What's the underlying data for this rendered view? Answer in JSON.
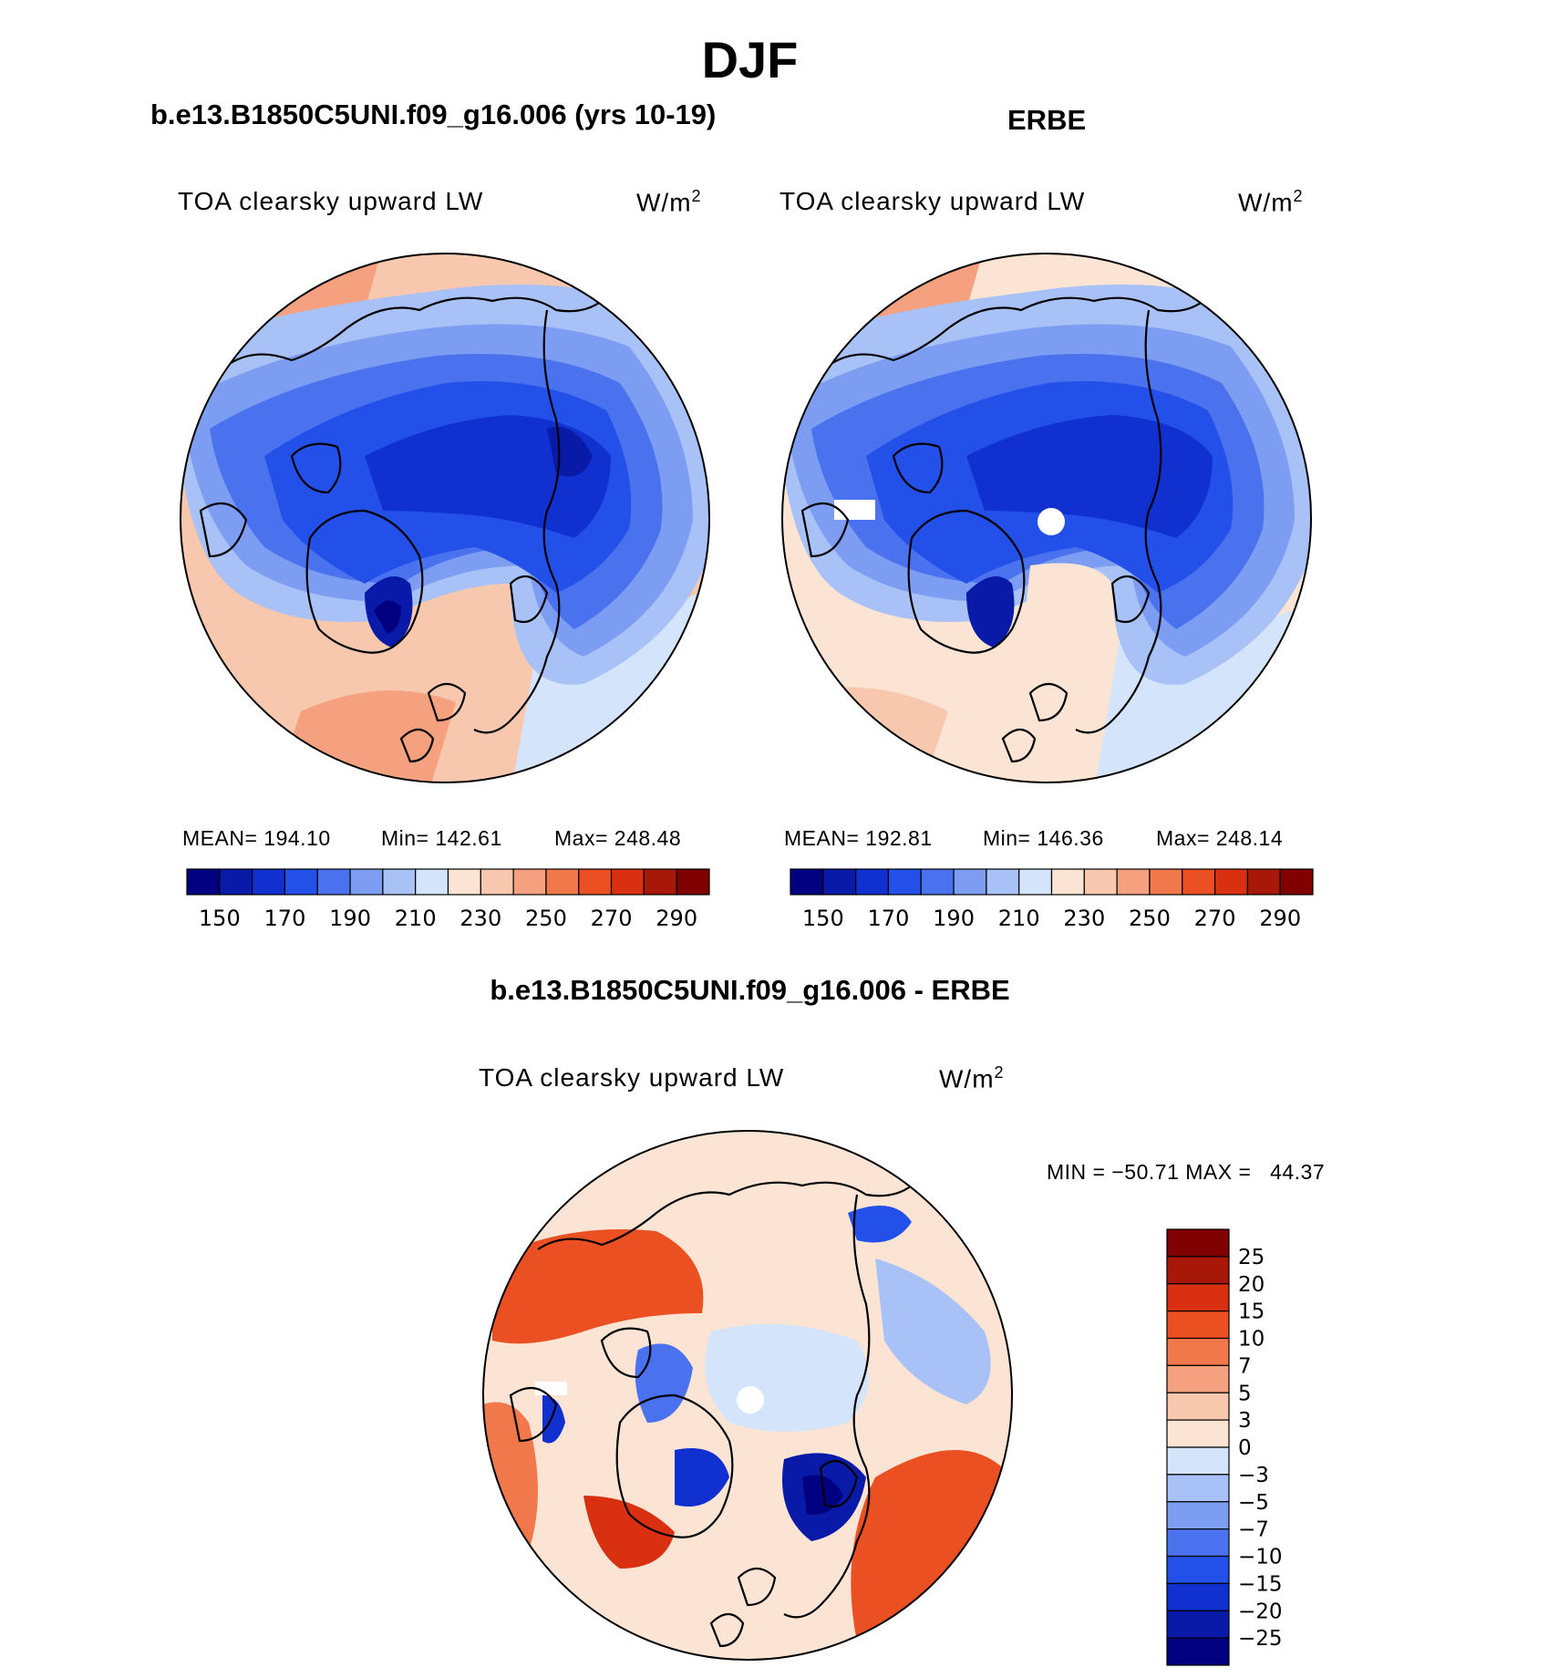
{
  "header": {
    "season": "DJF",
    "model_title": "b.e13.B1850C5UNI.f09_g16.006 (yrs 10-19)",
    "obs_title": "ERBE",
    "diff_title": "b.e13.B1850C5UNI.f09_g16.006 - ERBE"
  },
  "panels": {
    "model": {
      "variable": "TOA clearsky upward LW",
      "units": "W/m",
      "units_sup": "2",
      "mean_label": "MEAN= 194.10",
      "min_label": "Min= 142.61",
      "max_label": "Max= 248.48"
    },
    "obs": {
      "variable": "TOA clearsky upward LW",
      "units": "W/m",
      "units_sup": "2",
      "mean_label": "MEAN= 192.81",
      "min_label": "Min= 146.36",
      "max_label": "Max= 248.14"
    },
    "diff": {
      "variable": "TOA clearsky upward LW",
      "units": "W/m",
      "units_sup": "2",
      "minmax_label": "MIN = −50.71 MAX =   44.37"
    }
  },
  "chart_data": [
    {
      "type": "heatmap",
      "projection": "north polar stereographic",
      "title": "b.e13.B1850C5UNI.f09_g16.006 (yrs 10-19)",
      "variable": "TOA clearsky upward LW",
      "units": "W/m2",
      "stats": {
        "mean": 194.1,
        "min": 142.61,
        "max": 248.48
      },
      "colorbar": {
        "orientation": "horizontal",
        "levels": [
          150,
          160,
          170,
          180,
          190,
          200,
          210,
          220,
          230,
          240,
          250,
          260,
          270,
          280,
          290
        ],
        "tick_labels": [
          "150",
          "170",
          "190",
          "210",
          "230",
          "250",
          "270",
          "290"
        ],
        "colors": [
          "#000080",
          "#0a1aa8",
          "#1030d0",
          "#2350e8",
          "#4a72ee",
          "#7d9df2",
          "#a8c1f6",
          "#d4e4fa",
          "#fbe4d4",
          "#f8c8ae",
          "#f5a07e",
          "#f0784a",
          "#ea5022",
          "#d83010",
          "#a81808",
          "#800000"
        ]
      }
    },
    {
      "type": "heatmap",
      "projection": "north polar stereographic",
      "title": "ERBE",
      "variable": "TOA clearsky upward LW",
      "units": "W/m2",
      "stats": {
        "mean": 192.81,
        "min": 146.36,
        "max": 248.14
      },
      "colorbar": {
        "orientation": "horizontal",
        "levels": [
          150,
          160,
          170,
          180,
          190,
          200,
          210,
          220,
          230,
          240,
          250,
          260,
          270,
          280,
          290
        ],
        "tick_labels": [
          "150",
          "170",
          "190",
          "210",
          "230",
          "250",
          "270",
          "290"
        ],
        "colors": [
          "#000080",
          "#0a1aa8",
          "#1030d0",
          "#2350e8",
          "#4a72ee",
          "#7d9df2",
          "#a8c1f6",
          "#d4e4fa",
          "#fbe4d4",
          "#f8c8ae",
          "#f5a07e",
          "#f0784a",
          "#ea5022",
          "#d83010",
          "#a81808",
          "#800000"
        ]
      }
    },
    {
      "type": "heatmap",
      "projection": "north polar stereographic",
      "title": "b.e13.B1850C5UNI.f09_g16.006 - ERBE",
      "variable": "TOA clearsky upward LW",
      "units": "W/m2",
      "stats": {
        "min": -50.71,
        "max": 44.37
      },
      "colorbar": {
        "orientation": "vertical",
        "levels": [
          25,
          20,
          15,
          10,
          7,
          5,
          3,
          0,
          -3,
          -5,
          -7,
          -10,
          -15,
          -20,
          -25
        ],
        "tick_labels": [
          "25",
          "20",
          "15",
          "10",
          "7",
          "5",
          "3",
          "0",
          "−3",
          "−5",
          "−7",
          "−10",
          "−15",
          "−20",
          "−25"
        ],
        "colors": [
          "#800000",
          "#a81808",
          "#d83010",
          "#ea5022",
          "#f0784a",
          "#f5a07e",
          "#f8c8ae",
          "#fbe4d4",
          "#d4e4fa",
          "#a8c1f6",
          "#7d9df2",
          "#4a72ee",
          "#2350e8",
          "#1030d0",
          "#0a1aa8",
          "#000080"
        ]
      }
    }
  ]
}
